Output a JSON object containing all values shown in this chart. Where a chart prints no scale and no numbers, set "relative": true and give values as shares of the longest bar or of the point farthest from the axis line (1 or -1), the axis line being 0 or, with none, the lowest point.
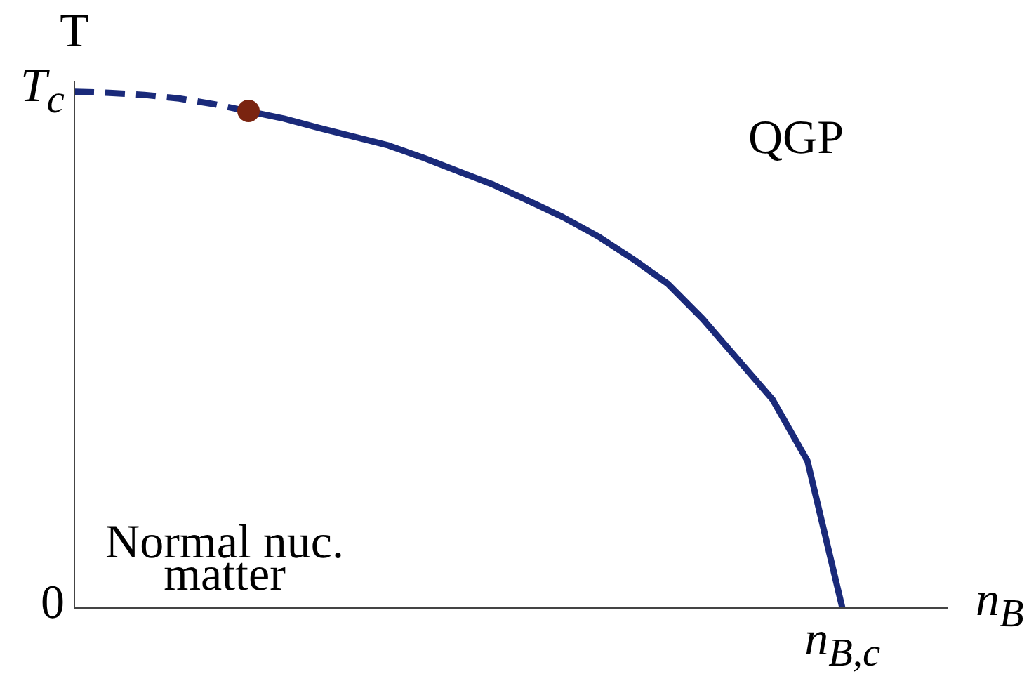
{
  "chart_data": {
    "type": "line",
    "relative": true,
    "xlabel": "n$_{B}$",
    "ylabel": "T",
    "grid": false,
    "legend": false,
    "marker": "none",
    "categories": [
      null,
      null,
      null,
      null,
      null,
      null,
      null,
      null,
      null,
      null,
      null,
      null,
      null,
      null,
      null,
      null,
      null,
      null,
      null,
      null,
      null,
      null,
      null
    ],
    "annotations": [
      "QGP",
      "Normal nuc. matter",
      "T$_{c}$",
      "0",
      "n$_{B,c}$"
    ],
    "series": [
      {
        "type": "line",
        "line_style": "dashed",
        "color": "#1a2a7a",
        "values": [
          1,
          0.998,
          0.994,
          0.987,
          0.976,
          0.962,
          null,
          null,
          null,
          null,
          null,
          null,
          null,
          null,
          null,
          null,
          null,
          null,
          null,
          null,
          null,
          null,
          null
        ]
      },
      {
        "type": "line",
        "line_style": "solid",
        "color": "#1a2a7a",
        "values": [
          null,
          null,
          null,
          null,
          null,
          0.962,
          0.948,
          0.93,
          0.913,
          0.896,
          0.872,
          0.846,
          0.82,
          0.789,
          0.757,
          0.72,
          0.676,
          0.628,
          0.56,
          0.482,
          0.404,
          0.285,
          0
        ]
      }
    ]
  }
}
